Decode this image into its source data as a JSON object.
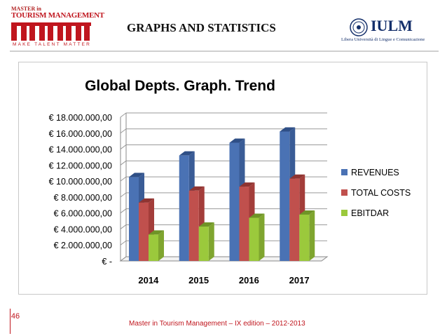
{
  "header": {
    "logo_master": "MASTER in",
    "logo_tourism": "TOURISM MANAGEMENT",
    "logo_tagline": "MAKE TALENT MATTER",
    "title": "GRAPHS AND STATISTICS",
    "iulm_name": "IULM",
    "iulm_subtitle": "Libera Università di Lingue e Comunicazione"
  },
  "footer": {
    "page_number": "46",
    "text": "Master in Tourism Management – IX edition – 2012-2013"
  },
  "colors": {
    "accent": "#c0161e",
    "revenues": "#4a72b4",
    "total_costs": "#c0504d",
    "ebitdar": "#9bc93c"
  },
  "chart_data": {
    "type": "bar",
    "title": "Global Depts. Graph.  Trend",
    "categories": [
      "2014",
      "2015",
      "2016",
      "2017"
    ],
    "series": [
      {
        "name": "REVENUES",
        "values": [
          10500000,
          13200000,
          14800000,
          16200000
        ]
      },
      {
        "name": "TOTAL COSTS",
        "values": [
          7300000,
          8800000,
          9300000,
          10300000
        ]
      },
      {
        "name": "EBITDAR",
        "values": [
          3300000,
          4300000,
          5400000,
          5800000
        ]
      }
    ],
    "yticks": [
      "€ -",
      "€ 2.000.000,00",
      "€ 4.000.000,00",
      "€ 6.000.000,00",
      "€ 8.000.000,00",
      "€ 10.000.000,00",
      "€ 12.000.000,00",
      "€ 14.000.000,00",
      "€ 16.000.000,00",
      "€ 18.000.000,00"
    ],
    "ylim": [
      0,
      18000000
    ],
    "grid": true,
    "legend": "right"
  }
}
